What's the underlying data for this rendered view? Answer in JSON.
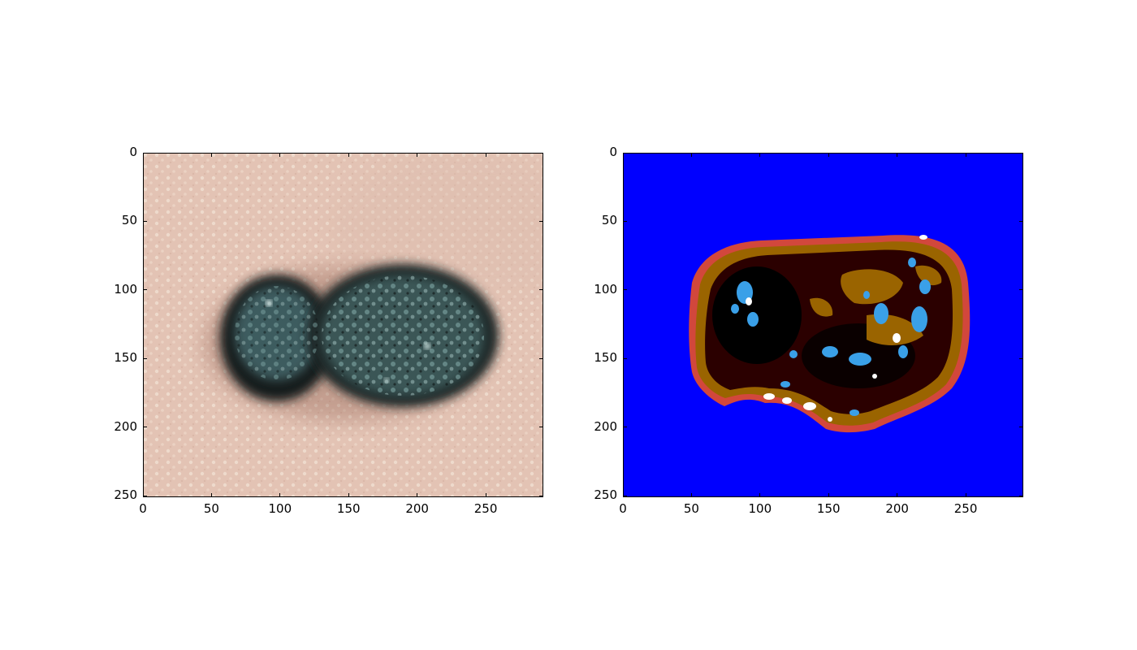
{
  "figure": {
    "panels": [
      {
        "id": "original",
        "content": "dermoscopy-image",
        "x_ticks": [
          "0",
          "50",
          "100",
          "150",
          "200",
          "250"
        ],
        "y_ticks": [
          "0",
          "50",
          "100",
          "150",
          "200",
          "250"
        ],
        "x_limit": [
          0,
          292
        ],
        "y_limit": [
          251,
          0
        ]
      },
      {
        "id": "segmented",
        "content": "color-segmentation",
        "x_ticks": [
          "0",
          "50",
          "100",
          "150",
          "200",
          "250"
        ],
        "y_ticks": [
          "0",
          "50",
          "100",
          "150",
          "200",
          "250"
        ],
        "x_limit": [
          0,
          292
        ],
        "y_limit": [
          251,
          0
        ],
        "colors": {
          "background": "#0000ff",
          "outer_border": "#d2473c",
          "lesion_rim": "#9a6400",
          "dark_brown": "#2b0000",
          "black": "#000000",
          "light_blue": "#3aa0e8",
          "white": "#ffffff"
        }
      }
    ],
    "colors": {
      "skin": "#e3c3b4",
      "lesion_dark": "#1f2b2b",
      "lesion_teal": "#4e7476"
    }
  }
}
